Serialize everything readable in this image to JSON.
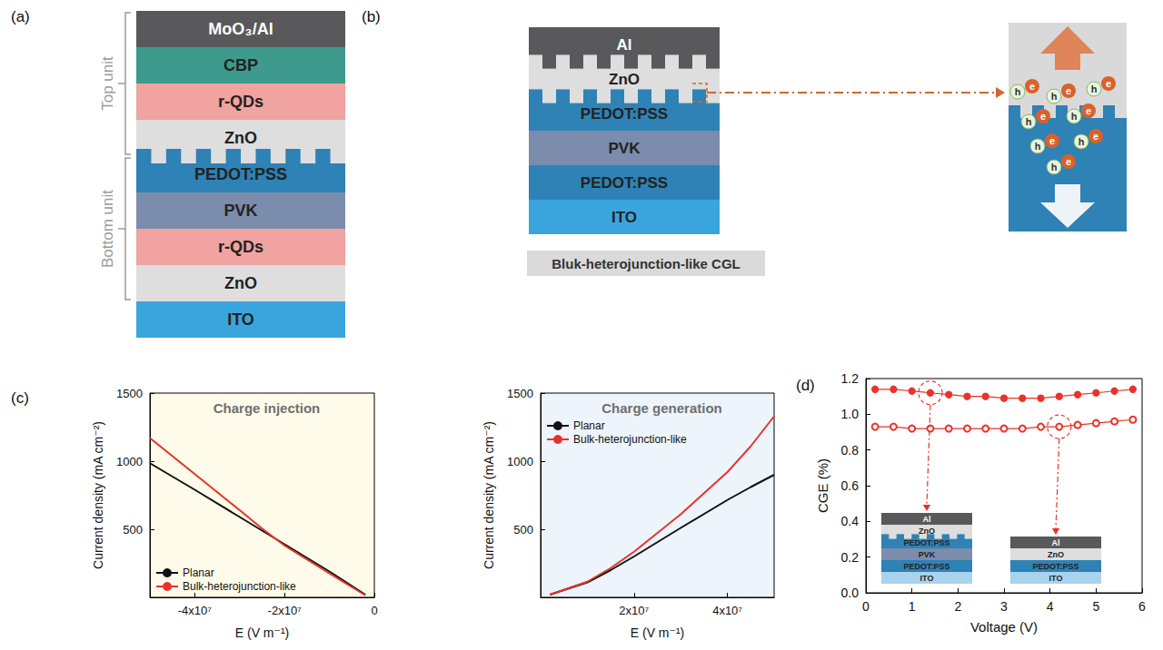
{
  "panels": {
    "a": {
      "letter": "(a)",
      "units": [
        {
          "label": "Top unit",
          "layers": [
            {
              "label": "MoO₃/Al",
              "color": "#59595b"
            },
            {
              "label": "CBP",
              "color": "#3d9a8c"
            },
            {
              "label": "r-QDs",
              "color": "#f0a3a0"
            },
            {
              "label": "ZnO",
              "color": "#dedede"
            }
          ]
        },
        {
          "label": "Bottom unit",
          "layers": [
            {
              "label": "PEDOT:PSS",
              "color": "#2e82b5"
            },
            {
              "label": "PVK",
              "color": "#7b8cad"
            },
            {
              "label": "r-QDs",
              "color": "#f0a3a0"
            },
            {
              "label": "ZnO",
              "color": "#dedede"
            }
          ]
        }
      ],
      "substrate": {
        "label": "ITO",
        "color": "#3aa5dd"
      }
    },
    "b": {
      "letter": "(b)",
      "layers": [
        {
          "label": "Al",
          "color": "#59595b"
        },
        {
          "label": "ZnO",
          "color": "#dedede"
        },
        {
          "label": "PEDOT:PSS",
          "color": "#2e82b5"
        },
        {
          "label": "PVK",
          "color": "#7b8cad"
        },
        {
          "label": "PEDOT:PSS",
          "color": "#2e82b5"
        },
        {
          "label": "ITO",
          "color": "#3aa5dd"
        }
      ],
      "caption": "Bluk-heterojunction-like CGL",
      "carriers": {
        "electron": "e",
        "hole": "h"
      }
    },
    "c": {
      "letter": "(c)"
    },
    "d": {
      "letter": "(d)",
      "insets": [
        {
          "layers": [
            {
              "label": "Al",
              "color": "#59595b"
            },
            {
              "label": "ZnO",
              "color": "#dedede"
            },
            {
              "label": "PEDOT:PSS",
              "color": "#2e82b5"
            },
            {
              "label": "PVK",
              "color": "#7b8cad"
            },
            {
              "label": "PEDOT:PSS",
              "color": "#2e82b5"
            },
            {
              "label": "ITO",
              "color": "#a9d3ec"
            }
          ]
        },
        {
          "layers": [
            {
              "label": "Al",
              "color": "#59595b"
            },
            {
              "label": "ZnO",
              "color": "#dedede"
            },
            {
              "label": "PEDOT:PSS",
              "color": "#2e82b5"
            },
            {
              "label": "ITO",
              "color": "#a9d3ec"
            }
          ]
        }
      ]
    }
  },
  "chart_data": [
    {
      "type": "line",
      "title": "Charge injection",
      "x_label": "E (V m⁻¹)",
      "y_label": "Current density (mA cm⁻²)",
      "xlim": [
        -50000000,
        0
      ],
      "xticks": [
        {
          "value": -40000000,
          "label": "-4x10⁷"
        },
        {
          "value": -20000000,
          "label": "-2x10⁷"
        },
        0
      ],
      "ylim": [
        0,
        1500
      ],
      "yticks": [
        500,
        1000,
        1500
      ],
      "grid": false,
      "legend": "bottom-left",
      "x": [
        -50000000,
        -40000000,
        -30000000,
        -25000000,
        -20000000,
        -10000000,
        -2000000
      ],
      "series": [
        {
          "name": "Planar",
          "color": "#111111",
          "values": [
            985,
            790,
            590,
            490,
            390,
            190,
            20
          ]
        },
        {
          "name": "Bulk-heterojunction-like",
          "color": "#e8332a",
          "values": [
            1170,
            905,
            640,
            505,
            380,
            175,
            15
          ]
        }
      ]
    },
    {
      "type": "line",
      "title": "Charge generation",
      "x_label": "E (V m⁻¹)",
      "y_label": "Current density (mA cm⁻²)",
      "xlim": [
        0,
        50000000
      ],
      "xticks": [
        {
          "value": 20000000,
          "label": "2x10⁷"
        },
        {
          "value": 40000000,
          "label": "4x10⁷"
        }
      ],
      "ylim": [
        0,
        1500
      ],
      "yticks": [
        500,
        1000,
        1500
      ],
      "grid": false,
      "legend": "top-left",
      "x": [
        2000000,
        10000000,
        15000000,
        20000000,
        30000000,
        40000000,
        45000000,
        50000000
      ],
      "series": [
        {
          "name": "Planar",
          "color": "#111111",
          "values": [
            20,
            110,
            200,
            300,
            510,
            715,
            810,
            900
          ]
        },
        {
          "name": "Bulk-heterojunction-like",
          "color": "#e8332a",
          "values": [
            20,
            115,
            215,
            335,
            610,
            920,
            1110,
            1330
          ]
        }
      ]
    },
    {
      "type": "line",
      "x_label": "Voltage (V)",
      "y_label": "CGE (%)",
      "xlim": [
        0,
        6
      ],
      "xticks": [
        0,
        1,
        2,
        3,
        4,
        5,
        6
      ],
      "ylim": [
        0,
        1.2
      ],
      "yticks": [
        {
          "value": 0,
          "label": "0.0"
        },
        0.2,
        0.4,
        0.6,
        0.8,
        {
          "value": 1,
          "label": "1.0"
        },
        1.2
      ],
      "grid": false,
      "x": [
        0.2,
        0.6,
        1.0,
        1.4,
        1.8,
        2.2,
        2.6,
        3.0,
        3.4,
        3.8,
        4.2,
        4.6,
        5.0,
        5.4,
        5.8
      ],
      "series": [
        {
          "color": "#e8332a",
          "marker": "circle",
          "values": [
            1.14,
            1.14,
            1.13,
            1.12,
            1.11,
            1.1,
            1.1,
            1.09,
            1.09,
            1.09,
            1.1,
            1.11,
            1.12,
            1.13,
            1.14
          ]
        },
        {
          "color": "#e8332a",
          "marker": "open_circle",
          "values": [
            0.93,
            0.93,
            0.92,
            0.92,
            0.92,
            0.92,
            0.92,
            0.92,
            0.92,
            0.93,
            0.93,
            0.94,
            0.95,
            0.96,
            0.97
          ]
        }
      ]
    }
  ]
}
